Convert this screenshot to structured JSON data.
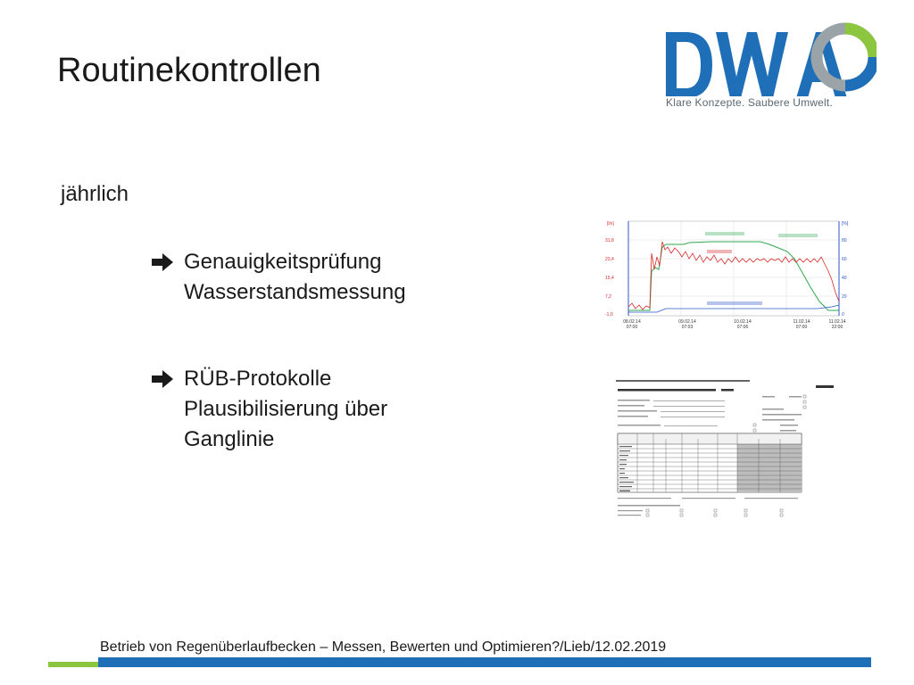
{
  "slide": {
    "title": "Routinekontrollen",
    "section_label": "jährlich"
  },
  "logo": {
    "wordmark": "DWA",
    "tagline": "Klare Konzepte. Saubere Umwelt.",
    "colors": {
      "blue": "#1e6fb7",
      "green": "#8cc63f",
      "grey": "#9aa3a8"
    }
  },
  "bullets": [
    {
      "icon": "right-arrow-icon",
      "lines": [
        "Genauigkeitsprüfung",
        "Wasserstandsmessung"
      ]
    },
    {
      "icon": "right-arrow-icon",
      "lines": [
        "RÜB-Protokolle",
        "Plausibilisierung über",
        "Ganglinie"
      ]
    }
  ],
  "chart_thumb": {
    "left_axis_unit": "[l/s]",
    "right_axis_unit": "[%]",
    "left_ticks": [
      "31,8",
      "23,4",
      "15,4",
      "7,2",
      "-1,0"
    ],
    "right_ticks": [
      "80",
      "60",
      "40",
      "20",
      "0"
    ],
    "x_ticks": [
      [
        "08.02.14",
        "07:00"
      ],
      [
        "09.02.14",
        "07:03"
      ],
      [
        "10.02.14",
        "07:06"
      ],
      [
        "11.02.14",
        "07:00"
      ],
      [
        "11.02.14",
        "22:00"
      ]
    ]
  },
  "footer": {
    "text": "Betrieb von Regenüberlaufbecken – Messen, Bewerten und Optimieren?/Lieb/12.02.2019"
  }
}
